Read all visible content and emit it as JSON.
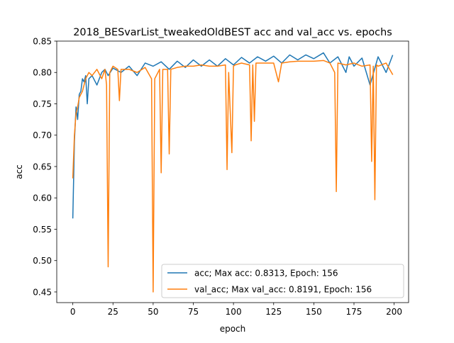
{
  "chart_data": {
    "type": "line",
    "title": "2018_BESvarList_tweakedOldBEST acc and val_acc vs. epochs",
    "xlabel": "epoch",
    "ylabel": "acc",
    "xlim": [
      -10,
      209
    ],
    "ylim": [
      0.433,
      0.85
    ],
    "xticks": [
      0,
      25,
      50,
      75,
      100,
      125,
      150,
      175,
      200
    ],
    "xtick_labels": [
      "0",
      "25",
      "50",
      "75",
      "100",
      "125",
      "150",
      "175",
      "200"
    ],
    "yticks": [
      0.45,
      0.5,
      0.55,
      0.6,
      0.65,
      0.7,
      0.75,
      0.8,
      0.85
    ],
    "ytick_labels": [
      "0.45",
      "0.50",
      "0.55",
      "0.60",
      "0.65",
      "0.70",
      "0.75",
      "0.80",
      "0.85"
    ],
    "grid": false,
    "legend_position": "lower-right",
    "colors": {
      "acc": "#1f77b4",
      "val_acc": "#ff7f0e"
    },
    "series": [
      {
        "name": "acc; Max acc: 0.8313, Epoch: 156",
        "key": "acc",
        "x": [
          0,
          1,
          2,
          3,
          4,
          5,
          6,
          7,
          8,
          9,
          10,
          12,
          15,
          18,
          20,
          22,
          25,
          30,
          35,
          40,
          45,
          50,
          55,
          60,
          65,
          70,
          75,
          80,
          85,
          90,
          95,
          100,
          105,
          110,
          115,
          120,
          125,
          130,
          135,
          140,
          145,
          150,
          156,
          160,
          165,
          170,
          172,
          175,
          180,
          185,
          190,
          195,
          199
        ],
        "y": [
          0.568,
          0.69,
          0.745,
          0.725,
          0.765,
          0.77,
          0.79,
          0.785,
          0.795,
          0.75,
          0.79,
          0.795,
          0.78,
          0.8,
          0.805,
          0.795,
          0.807,
          0.8,
          0.81,
          0.795,
          0.815,
          0.81,
          0.817,
          0.805,
          0.818,
          0.808,
          0.82,
          0.81,
          0.82,
          0.81,
          0.822,
          0.812,
          0.824,
          0.815,
          0.825,
          0.818,
          0.826,
          0.815,
          0.828,
          0.82,
          0.828,
          0.822,
          0.8313,
          0.815,
          0.825,
          0.8,
          0.825,
          0.81,
          0.823,
          0.78,
          0.825,
          0.8,
          0.827
        ]
      },
      {
        "name": "val_acc; Max val_acc: 0.8191, Epoch: 156",
        "key": "val_acc",
        "x": [
          0,
          1,
          2,
          3,
          4,
          5,
          6,
          7,
          8,
          9,
          10,
          12,
          15,
          18,
          20,
          21,
          22,
          23,
          25,
          28,
          29,
          30,
          35,
          40,
          45,
          49,
          50,
          51,
          54,
          55,
          56,
          59,
          60,
          61,
          65,
          70,
          75,
          80,
          85,
          90,
          95,
          96,
          97,
          99,
          100,
          101,
          105,
          110,
          111,
          112,
          113,
          114,
          115,
          120,
          125,
          128,
          130,
          135,
          140,
          145,
          150,
          156,
          160,
          163,
          164,
          165,
          170,
          175,
          180,
          185,
          186,
          187,
          188,
          189,
          190,
          195,
          199
        ],
        "y": [
          0.632,
          0.7,
          0.735,
          0.745,
          0.76,
          0.765,
          0.77,
          0.78,
          0.79,
          0.795,
          0.8,
          0.795,
          0.805,
          0.79,
          0.805,
          0.78,
          0.49,
          0.8,
          0.81,
          0.805,
          0.755,
          0.805,
          0.805,
          0.8,
          0.808,
          0.79,
          0.45,
          0.79,
          0.805,
          0.64,
          0.805,
          0.805,
          0.67,
          0.805,
          0.808,
          0.81,
          0.81,
          0.812,
          0.81,
          0.81,
          0.812,
          0.645,
          0.8,
          0.672,
          0.81,
          0.812,
          0.815,
          0.812,
          0.691,
          0.812,
          0.722,
          0.815,
          0.815,
          0.815,
          0.815,
          0.785,
          0.815,
          0.817,
          0.818,
          0.818,
          0.818,
          0.8191,
          0.815,
          0.8,
          0.61,
          0.815,
          0.812,
          0.815,
          0.81,
          0.812,
          0.658,
          0.81,
          0.597,
          0.812,
          0.81,
          0.815,
          0.797
        ]
      }
    ]
  }
}
